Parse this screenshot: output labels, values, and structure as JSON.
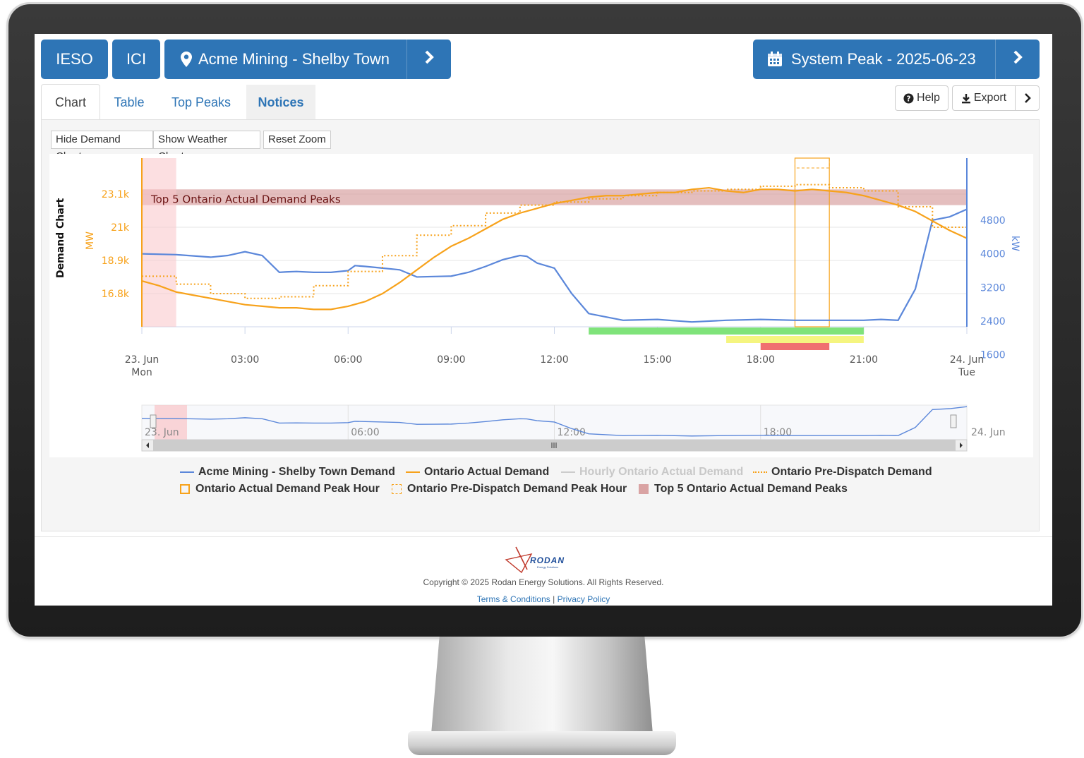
{
  "header": {
    "btn_ieso": "IESO",
    "btn_ici": "ICI",
    "site_label": "Acme Mining - Shelby Town",
    "period_label": "System Peak - 2025-06-23"
  },
  "tabs": [
    {
      "label": "Chart",
      "active": true
    },
    {
      "label": "Table",
      "active": false
    },
    {
      "label": "Top Peaks",
      "active": false
    },
    {
      "label": "Notices",
      "active": false
    }
  ],
  "toolbar": {
    "help": "Help",
    "export": "Export"
  },
  "chart_options": {
    "hide_demand": "Hide Demand Chart",
    "show_weather": "Show Weather Chart",
    "reset_zoom": "Reset Zoom"
  },
  "chart_data": {
    "type": "line",
    "title": "Demand Chart",
    "y_left_label": "MW",
    "y_right_label": "kW",
    "y_left_ticks": [
      "23.1k",
      "21k",
      "18.9k",
      "16.8k"
    ],
    "y_right_ticks": [
      "4800",
      "4000",
      "3200",
      "2400",
      "1600"
    ],
    "x_ticks": [
      {
        "top": "23. Jun",
        "bottom": "Mon"
      },
      {
        "top": "03:00",
        "bottom": ""
      },
      {
        "top": "06:00",
        "bottom": ""
      },
      {
        "top": "09:00",
        "bottom": ""
      },
      {
        "top": "12:00",
        "bottom": ""
      },
      {
        "top": "15:00",
        "bottom": ""
      },
      {
        "top": "18:00",
        "bottom": ""
      },
      {
        "top": "21:00",
        "bottom": ""
      },
      {
        "top": "24. Jun",
        "bottom": "Tue"
      }
    ],
    "band_label": "Top 5 Ontario Actual Demand Peaks",
    "band_mw_range": [
      22400,
      23400
    ],
    "peak_hour": [
      19,
      20
    ],
    "series": [
      {
        "name": "Acme Mining - Shelby Town Demand",
        "color": "#5b87da",
        "axis": "kW",
        "x": [
          0,
          1,
          2,
          2.5,
          3,
          3.5,
          4,
          4.2,
          4.5,
          5,
          5.5,
          6,
          6.2,
          6.5,
          7,
          7.5,
          8,
          8.5,
          9,
          9.5,
          10,
          10.5,
          11,
          11.2,
          11.5,
          12,
          12.5,
          13,
          13.5,
          14,
          15,
          16,
          17,
          18,
          19,
          20,
          21,
          21.5,
          22,
          22.5,
          23,
          23.5,
          24
        ],
        "values": [
          4000,
          3980,
          3920,
          3960,
          4050,
          3960,
          3560,
          3570,
          3580,
          3560,
          3560,
          3600,
          3720,
          3700,
          3660,
          3620,
          3450,
          3460,
          3470,
          3560,
          3700,
          3860,
          3960,
          3940,
          3780,
          3660,
          3060,
          2580,
          2500,
          2420,
          2440,
          2380,
          2420,
          2440,
          2420,
          2420,
          2420,
          2440,
          2420,
          3160,
          4800,
          4880,
          5060
        ]
      },
      {
        "name": "Ontario Actual Demand",
        "color": "#f7a21b",
        "axis": "MW",
        "x": [
          0,
          0.5,
          1,
          1.5,
          2,
          2.5,
          3,
          3.5,
          4,
          4.5,
          5,
          5.5,
          6,
          6.5,
          7,
          7.5,
          8,
          8.5,
          9,
          9.5,
          10,
          10.5,
          11,
          11.5,
          12,
          12.5,
          13,
          13.5,
          14,
          14.5,
          15,
          15.5,
          16,
          16.5,
          17,
          17.5,
          18,
          18.5,
          19,
          19.5,
          20,
          20.5,
          21,
          21.5,
          22,
          22.5,
          23,
          23.5,
          24
        ],
        "values": [
          17600,
          17300,
          16900,
          16700,
          16500,
          16300,
          16100,
          16000,
          15900,
          15900,
          15800,
          15800,
          16000,
          16300,
          16800,
          17500,
          18300,
          19100,
          19800,
          20300,
          20900,
          21500,
          21900,
          22200,
          22500,
          22700,
          22900,
          23000,
          23000,
          23100,
          23200,
          23200,
          23400,
          23500,
          23300,
          23200,
          23400,
          23400,
          23300,
          23400,
          23300,
          23200,
          23000,
          22700,
          22400,
          22000,
          21400,
          20800,
          20300
        ]
      },
      {
        "name": "Hourly Ontario Actual Demand",
        "color": "#c8c8c8",
        "axis": "MW",
        "visible": false,
        "x": [],
        "values": []
      },
      {
        "name": "Ontario Pre-Dispatch Demand",
        "color": "#f7a21b",
        "axis": "MW",
        "style": "dotted-step",
        "x": [
          0,
          1,
          2,
          3,
          4,
          5,
          6,
          7,
          8,
          9,
          10,
          11,
          12,
          13,
          14,
          15,
          16,
          17,
          18,
          19,
          20,
          21,
          22,
          23,
          24
        ],
        "values": [
          17900,
          17400,
          16800,
          16500,
          16600,
          17300,
          18200,
          19200,
          20500,
          21100,
          21900,
          22400,
          22600,
          22800,
          23000,
          23200,
          23300,
          23400,
          23600,
          23700,
          23500,
          23300,
          22300,
          21000,
          20500
        ]
      }
    ],
    "legend": [
      {
        "name": "Acme Mining - Shelby Town Demand",
        "symbol": "line",
        "color": "#5b87da"
      },
      {
        "name": "Ontario Actual Demand",
        "symbol": "line",
        "color": "#f7a21b"
      },
      {
        "name": "Hourly Ontario Actual Demand",
        "symbol": "line",
        "color": "#cccccc",
        "hidden": true
      },
      {
        "name": "Ontario Pre-Dispatch Demand",
        "symbol": "dotted",
        "color": "#f7a21b"
      },
      {
        "name": "Ontario Actual Demand Peak Hour",
        "symbol": "box",
        "color": "#f7a21b"
      },
      {
        "name": "Ontario Pre-Dispatch Demand Peak Hour",
        "symbol": "dashed-box",
        "color": "#f7a21b"
      },
      {
        "name": "Top 5 Ontario Actual Demand Peaks",
        "symbol": "filled-box",
        "color": "#d9a3a3"
      }
    ],
    "alert_bars": [
      {
        "color": "#7fe37a",
        "from": 13,
        "to": 21
      },
      {
        "color": "#f5f580",
        "from": 17,
        "to": 21
      },
      {
        "color": "#f07070",
        "from": 18,
        "to": 20
      }
    ],
    "navigator_ticks": [
      "23. Jun",
      "06:00",
      "12:00",
      "18:00",
      "24. Jun"
    ],
    "grid": true,
    "legend_position": "bottom"
  },
  "footer": {
    "logo_text": "RODAN",
    "logo_sub": "Energy Solutions",
    "copyright": "Copyright © 2025 Rodan Energy Solutions. All Rights Reserved.",
    "terms": "Terms & Conditions",
    "separator": "|",
    "privacy": "Privacy Policy"
  }
}
